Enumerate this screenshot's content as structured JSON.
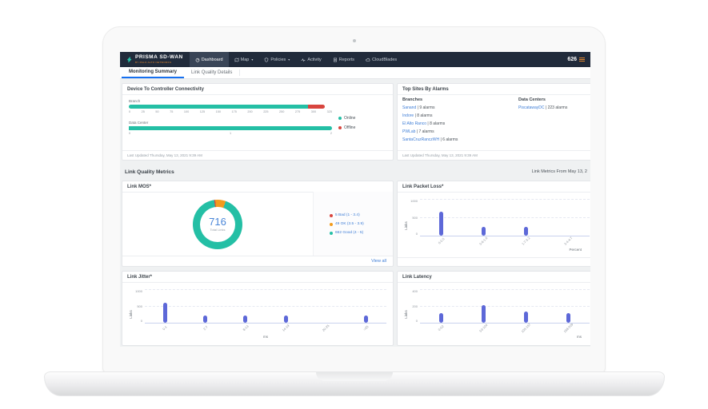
{
  "nav": {
    "brand_title": "PRISMA SD-WAN",
    "brand_subtitle": "BY PALO ALTO NETWORKS",
    "items": [
      {
        "label": "Dashboard"
      },
      {
        "label": "Map"
      },
      {
        "label": "Policies"
      },
      {
        "label": "Activity"
      },
      {
        "label": "Reports"
      },
      {
        "label": "CloudBlades"
      }
    ],
    "caret": "▾",
    "alarm_count": "626"
  },
  "tabs": [
    {
      "label": "Monitoring Summary"
    },
    {
      "label": "Link Quality Details"
    }
  ],
  "panels": {
    "connectivity": {
      "title": "Device To Controller Connectivity",
      "branch": {
        "label": "Branch",
        "max": 325,
        "segments": [
          {
            "name": "Online",
            "value": 287,
            "color": "#24bfa5"
          },
          {
            "name": "Offline",
            "value": 26,
            "color": "#d8453e"
          }
        ],
        "ticks": [
          "0",
          "25",
          "50",
          "75",
          "100",
          "125",
          "150",
          "175",
          "200",
          "225",
          "250",
          "275",
          "300",
          "325"
        ]
      },
      "data_center": {
        "label": "Data Center",
        "max": 2,
        "segments": [
          {
            "name": "Online",
            "value": 2,
            "color": "#24bfa5"
          }
        ],
        "ticks": [
          "0",
          "1",
          "2"
        ]
      },
      "legend": [
        {
          "label": "Online",
          "color": "#24bfa5"
        },
        {
          "label": "Offline",
          "color": "#d8453e"
        }
      ],
      "last_updated": "Last Updated Thursday, May 13, 2021 9:39 AM"
    },
    "top_sites": {
      "title": "Top Sites By Alarms",
      "branches_header": "Branches",
      "branches": [
        {
          "name": "Sanand",
          "alarms": "| 9 alarms"
        },
        {
          "name": "Indore",
          "alarms": "| 8 alarms"
        },
        {
          "name": "El Alto Ranco",
          "alarms": "| 8 alarms"
        },
        {
          "name": "PWLab",
          "alarms": "| 7 alarms"
        },
        {
          "name": "SantaCruzRanczWH",
          "alarms": "| 6 alarms"
        }
      ],
      "datacenters_header": "Data Centers",
      "datacenters": [
        {
          "name": "PiscatawayDC",
          "alarms": "| 223 alarms"
        }
      ],
      "last_updated": "Last Updated Thursday, May 13, 2021 9:39 AM"
    },
    "metrics_bar": {
      "title": "Link Quality Metrics",
      "range_label": "Link Metrics From May 13, 2"
    },
    "mos": {
      "title": "Link MOS*",
      "total": "716",
      "total_label": "Total Links",
      "start_angle": -8,
      "segments": [
        {
          "label": "5 Bad (1 - 3.4)",
          "value": 5,
          "color": "#d8453e"
        },
        {
          "label": "49 OK (3.5 - 3.9)",
          "value": 49,
          "color": "#f29b1d"
        },
        {
          "label": "662 Good (4 - 5)",
          "value": 662,
          "color": "#24bfa5"
        }
      ],
      "view_all": "View all"
    },
    "packet_loss": {
      "title": "Link Packet Loss*",
      "chart": {
        "type": "bar",
        "ylabel": "Links",
        "xlabel": "Percent",
        "yticks": [
          "0",
          "500",
          "1000"
        ],
        "ymax": 1000,
        "categories": [
          "0-0.5",
          "0.6-1.6",
          "1.7-3.2",
          "3.4-4.7"
        ],
        "values": [
          650,
          250,
          250,
          0
        ],
        "bar_color": "#5d68d8"
      }
    },
    "jitter": {
      "title": "Link Jitter*",
      "chart": {
        "type": "bar",
        "ylabel": "Links",
        "xlabel": "ms",
        "yticks": [
          "0",
          "500",
          "1000"
        ],
        "ymax": 1000,
        "categories": [
          "0-1",
          "2-7",
          "8-13",
          "14-19",
          "20-25",
          ">25"
        ],
        "values": [
          600,
          220,
          220,
          210,
          0,
          220
        ],
        "bar_color": "#5d68d8"
      }
    },
    "latency": {
      "title": "Link Latency",
      "chart": {
        "type": "bar",
        "ylabel": "Links",
        "xlabel": "ms",
        "yticks": [
          "0",
          "200",
          "400"
        ],
        "ymax": 400,
        "categories": [
          "0-52",
          "53-104",
          "105-157",
          "158-209"
        ],
        "values": [
          110,
          210,
          130,
          110
        ],
        "bar_color": "#5d68d8"
      }
    }
  }
}
